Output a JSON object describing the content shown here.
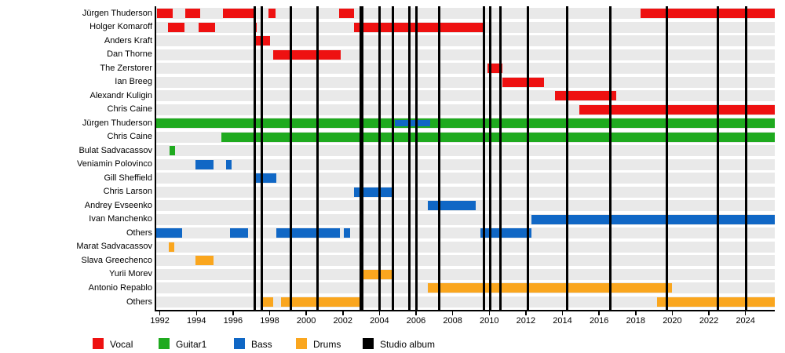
{
  "chart_data": {
    "type": "timeline",
    "title": "",
    "x_axis": {
      "start": 1991.8,
      "end": 2025.6,
      "tick_labels": [
        1992,
        1994,
        1996,
        1998,
        2000,
        2002,
        2004,
        2006,
        2008,
        2010,
        2012,
        2014,
        2016,
        2018,
        2020,
        2022,
        2024
      ]
    },
    "legend": [
      {
        "label": "Vocal",
        "role": "Vocal",
        "color": "#ee1111"
      },
      {
        "label": "Guitar1",
        "role": "Guitar1",
        "color": "#1faa1f"
      },
      {
        "label": "Bass",
        "role": "Bass",
        "color": "#1067c5"
      },
      {
        "label": "Drums",
        "role": "Drums",
        "color": "#faa61e"
      },
      {
        "label": "Studio album",
        "role": "Album",
        "color": "#000000"
      }
    ],
    "album_years": [
      1997.2,
      1997.55,
      1999.15,
      2000.6,
      2002.97,
      2003.08,
      2004.0,
      2004.72,
      2005.62,
      2006.0,
      2007.25,
      2009.7,
      2010.05,
      2010.6,
      2012.1,
      2014.25,
      2016.6,
      2019.7,
      2022.5,
      2024.05
    ],
    "rows": [
      {
        "label": "Jürgen Thuderson",
        "role": "Vocal",
        "bars": [
          [
            1991.85,
            1992.7
          ],
          [
            1993.4,
            1994.2
          ],
          [
            1995.45,
            1997.15
          ],
          [
            1997.95,
            1998.3
          ],
          [
            2001.8,
            2002.6
          ],
          [
            2018.25,
            2025.6
          ]
        ]
      },
      {
        "label": "Holger Komaroff",
        "role": "Vocal",
        "bars": [
          [
            1992.45,
            1993.35
          ],
          [
            1994.1,
            1995.0
          ],
          [
            1997.1,
            1997.3
          ],
          [
            2002.6,
            2009.75
          ]
        ]
      },
      {
        "label": "Anders Kraft",
        "role": "Vocal",
        "bars": [
          [
            1997.18,
            1998.0
          ]
        ]
      },
      {
        "label": "Dan Thorne",
        "role": "Vocal",
        "bars": [
          [
            1998.2,
            2001.9
          ]
        ]
      },
      {
        "label": "The Zerstorer",
        "role": "Vocal",
        "bars": [
          [
            2009.9,
            2010.7
          ]
        ]
      },
      {
        "label": "Ian Breeg",
        "role": "Vocal",
        "bars": [
          [
            2010.7,
            2013.0
          ]
        ]
      },
      {
        "label": "Alexandr Kuligin",
        "role": "Vocal",
        "bars": [
          [
            2013.6,
            2016.95
          ]
        ]
      },
      {
        "label": "Chris Caine",
        "role": "Vocal",
        "bars": [
          [
            2014.9,
            2025.6
          ]
        ]
      },
      {
        "label": "Jürgen Thuderson",
        "role": "Guitar1",
        "bars": [
          [
            1991.8,
            2025.6
          ]
        ],
        "overlay": {
          "role": "Bass",
          "bars": [
            [
              2004.85,
              2006.75
            ]
          ]
        }
      },
      {
        "label": "Chris Caine",
        "role": "Guitar1",
        "bars": [
          [
            1995.35,
            2025.6
          ]
        ]
      },
      {
        "label": "Bulat Sadvacassov",
        "role": "Guitar1",
        "bars": [
          [
            1992.55,
            1992.85
          ]
        ]
      },
      {
        "label": "Veniamin Polovinco",
        "role": "Bass",
        "bars": [
          [
            1993.95,
            1994.95
          ],
          [
            1995.6,
            1995.9
          ]
        ]
      },
      {
        "label": "Gill Sheffield",
        "role": "Bass",
        "bars": [
          [
            1997.15,
            1998.35
          ]
        ]
      },
      {
        "label": "Chris Larson",
        "role": "Bass",
        "bars": [
          [
            2002.6,
            2004.75
          ]
        ]
      },
      {
        "label": "Andrey Evseenko",
        "role": "Bass",
        "bars": [
          [
            2006.65,
            2009.25
          ]
        ]
      },
      {
        "label": "Ivan Manchenko",
        "role": "Bass",
        "bars": [
          [
            2012.3,
            2025.6
          ]
        ]
      },
      {
        "label": "Others",
        "role": "Bass",
        "bars": [
          [
            1991.8,
            1993.2
          ],
          [
            1995.85,
            1996.8
          ],
          [
            1998.35,
            2001.85
          ],
          [
            2002.05,
            2002.4
          ],
          [
            2009.5,
            2012.3
          ]
        ]
      },
      {
        "label": "Marat Sadvacassov",
        "role": "Drums",
        "bars": [
          [
            1992.5,
            1992.8
          ]
        ]
      },
      {
        "label": "Slava Greechenco",
        "role": "Drums",
        "bars": [
          [
            1993.95,
            1994.95
          ]
        ]
      },
      {
        "label": "Yurii Morev",
        "role": "Drums",
        "bars": [
          [
            2003.1,
            2004.75
          ]
        ]
      },
      {
        "label": "Antonio Repablo",
        "role": "Drums",
        "bars": [
          [
            2006.65,
            2020.0
          ]
        ]
      },
      {
        "label": "Others",
        "role": "Drums",
        "bars": [
          [
            1997.65,
            1998.2
          ],
          [
            1998.6,
            2003.0
          ],
          [
            2019.15,
            2025.6
          ]
        ]
      }
    ],
    "grid": "off",
    "legend_position": "bottom-left"
  }
}
